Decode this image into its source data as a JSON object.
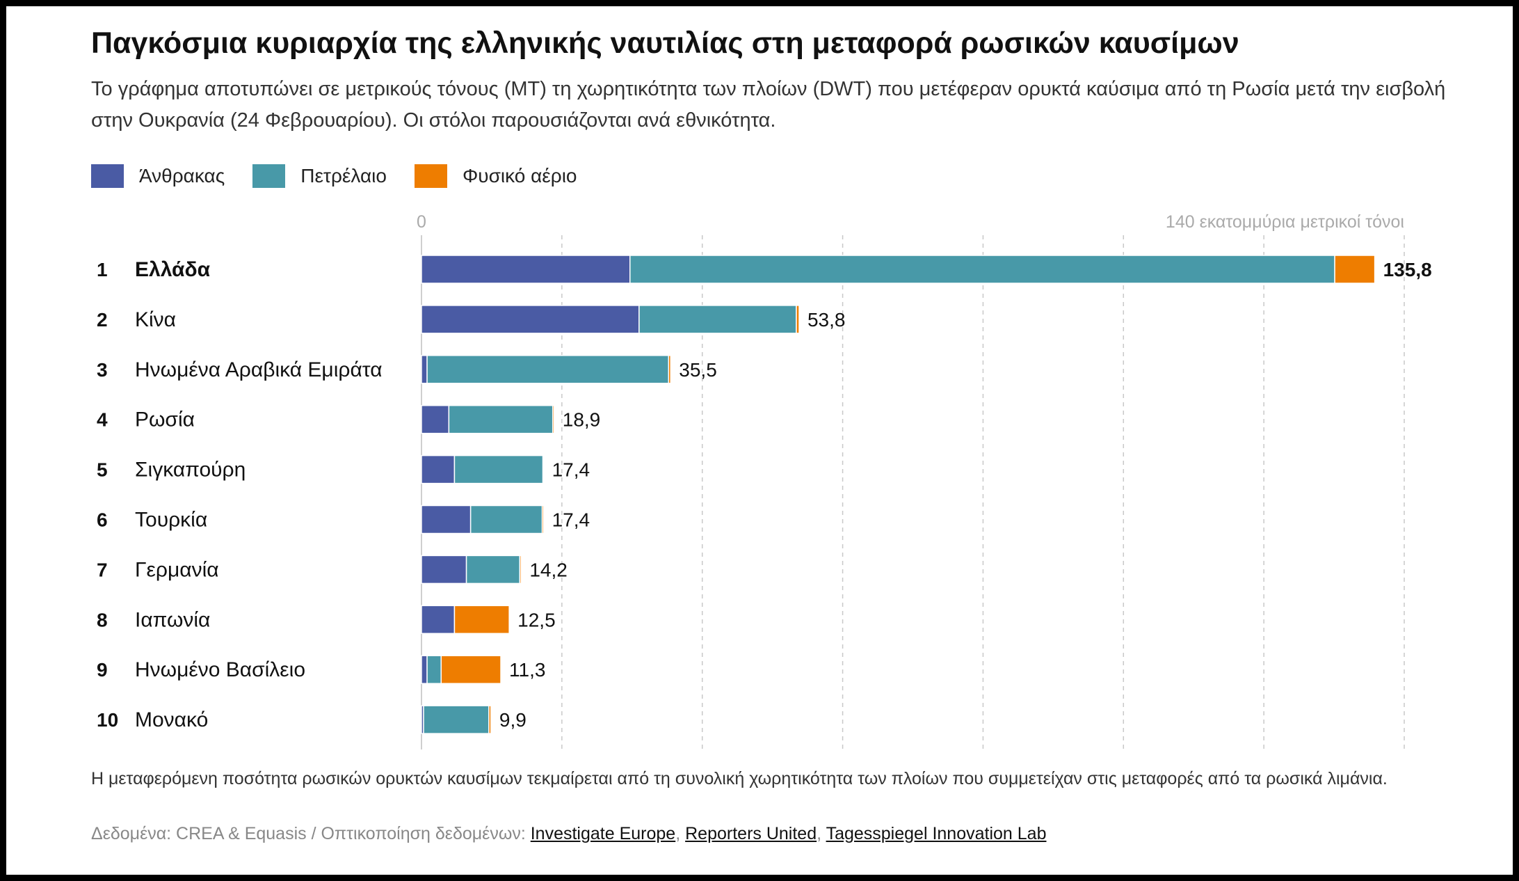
{
  "title": "Παγκόσμια κυριαρχία της ελληνικής ναυτιλίας στη μεταφορά ρωσικών καυσίμων",
  "subtitle": "Το γράφημα αποτυπώνει σε μετρικούς τόνους (MT) τη χωρητικότητα των πλοίων (DWT) που μετέφεραν ορυκτά καύσιμα από τη Ρωσία μετά την εισβολή στην Ουκρανία (24 Φεβρουαρίου). Οι στόλοι παρουσιάζονται ανά εθνικότητα.",
  "legend": [
    {
      "label": "Άνθρακας",
      "color": "#4a5ba4"
    },
    {
      "label": "Πετρέλαιο",
      "color": "#4899a8"
    },
    {
      "label": "Φυσικό αέριο",
      "color": "#ee7d00"
    }
  ],
  "chart_data": {
    "type": "bar",
    "orientation": "horizontal",
    "stacked": true,
    "axis_min_label": "0",
    "axis_max_label": "140 εκατομμύρια μετρικοί τόνοι",
    "xlim": [
      0,
      140
    ],
    "grid": true,
    "gridlines": [
      20,
      40,
      60,
      80,
      100,
      120,
      140
    ],
    "ranks": [
      "1",
      "2",
      "3",
      "4",
      "5",
      "6",
      "7",
      "8",
      "9",
      "10"
    ],
    "categories": [
      "Ελλάδα",
      "Κίνα",
      "Ηνωμένα Αραβικά Εμιράτα",
      "Ρωσία",
      "Σιγκαπούρη",
      "Τουρκία",
      "Γερμανία",
      "Ιαπωνία",
      "Ηνωμένο Βασίλειο",
      "Μονακό"
    ],
    "series": [
      {
        "name": "Άνθρακας",
        "color": "#4a5ba4",
        "values": [
          29.7,
          31.0,
          0.8,
          3.9,
          4.7,
          7.0,
          6.4,
          4.7,
          0.8,
          0.3
        ]
      },
      {
        "name": "Πετρέλαιο",
        "color": "#4899a8",
        "values": [
          100.4,
          22.4,
          34.4,
          14.8,
          12.6,
          10.2,
          7.6,
          0.0,
          2.0,
          9.3
        ]
      },
      {
        "name": "Φυσικό αέριο",
        "color": "#ee7d00",
        "values": [
          5.7,
          0.4,
          0.3,
          0.2,
          0.1,
          0.2,
          0.2,
          7.8,
          8.5,
          0.3
        ]
      }
    ],
    "totals": [
      135.8,
      53.8,
      35.5,
      18.9,
      17.4,
      17.4,
      14.2,
      12.5,
      11.3,
      9.9
    ],
    "total_labels": [
      "135,8",
      "53,8",
      "35,5",
      "18,9",
      "17,4",
      "17,4",
      "14,2",
      "12,5",
      "11,3",
      "9,9"
    ],
    "highlight_index": 0
  },
  "note": "Η μεταφερόμενη ποσότητα ρωσικών ορυκτών καυσίμων τεκμαίρεται από τη συνολική χωρητικότητα των πλοίων που συμμετείχαν στις μεταφορές από τα ρωσικά λιμάνια.",
  "source": {
    "prefix": "Δεδομένα: CREA & Equasis / Οπτικοποίηση δεδομένων: ",
    "links": [
      "Investigate Europe",
      "Reporters United",
      "Tagesspiegel Innovation Lab"
    ],
    "separator": ", "
  }
}
